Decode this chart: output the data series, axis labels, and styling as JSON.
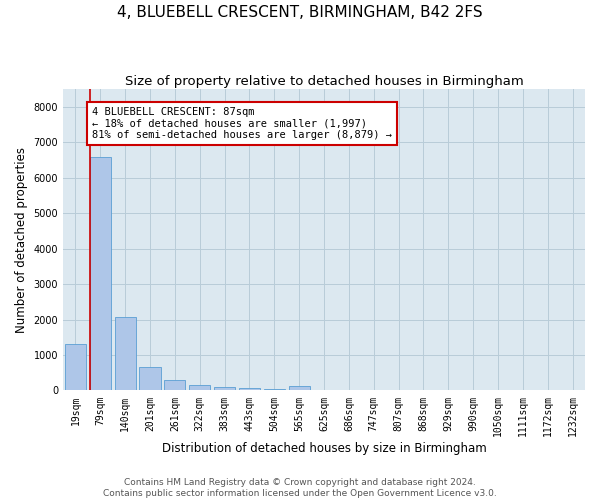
{
  "title": "4, BLUEBELL CRESCENT, BIRMINGHAM, B42 2FS",
  "subtitle": "Size of property relative to detached houses in Birmingham",
  "xlabel": "Distribution of detached houses by size in Birmingham",
  "ylabel": "Number of detached properties",
  "categories": [
    "19sqm",
    "79sqm",
    "140sqm",
    "201sqm",
    "261sqm",
    "322sqm",
    "383sqm",
    "443sqm",
    "504sqm",
    "565sqm",
    "625sqm",
    "686sqm",
    "747sqm",
    "807sqm",
    "868sqm",
    "929sqm",
    "990sqm",
    "1050sqm",
    "1111sqm",
    "1172sqm",
    "1232sqm"
  ],
  "values": [
    1300,
    6600,
    2080,
    650,
    290,
    140,
    100,
    80,
    55,
    115,
    0,
    0,
    0,
    0,
    0,
    0,
    0,
    0,
    0,
    0,
    0
  ],
  "bar_color": "#aec6e8",
  "bar_edge_color": "#5a9fd4",
  "property_line_label": "4 BLUEBELL CRESCENT: 87sqm",
  "annotation_line1": "← 18% of detached houses are smaller (1,997)",
  "annotation_line2": "81% of semi-detached houses are larger (8,879) →",
  "annotation_box_color": "#ffffff",
  "annotation_box_edge_color": "#cc0000",
  "ylim": [
    0,
    8500
  ],
  "yticks": [
    0,
    1000,
    2000,
    3000,
    4000,
    5000,
    6000,
    7000,
    8000
  ],
  "footer_line1": "Contains HM Land Registry data © Crown copyright and database right 2024.",
  "footer_line2": "Contains public sector information licensed under the Open Government Licence v3.0.",
  "background_color": "#ffffff",
  "axes_bg_color": "#dce8f0",
  "grid_color": "#b8ccd8",
  "title_fontsize": 11,
  "subtitle_fontsize": 9.5,
  "axis_label_fontsize": 8.5,
  "tick_fontsize": 7,
  "footer_fontsize": 6.5,
  "annotation_fontsize": 7.5
}
